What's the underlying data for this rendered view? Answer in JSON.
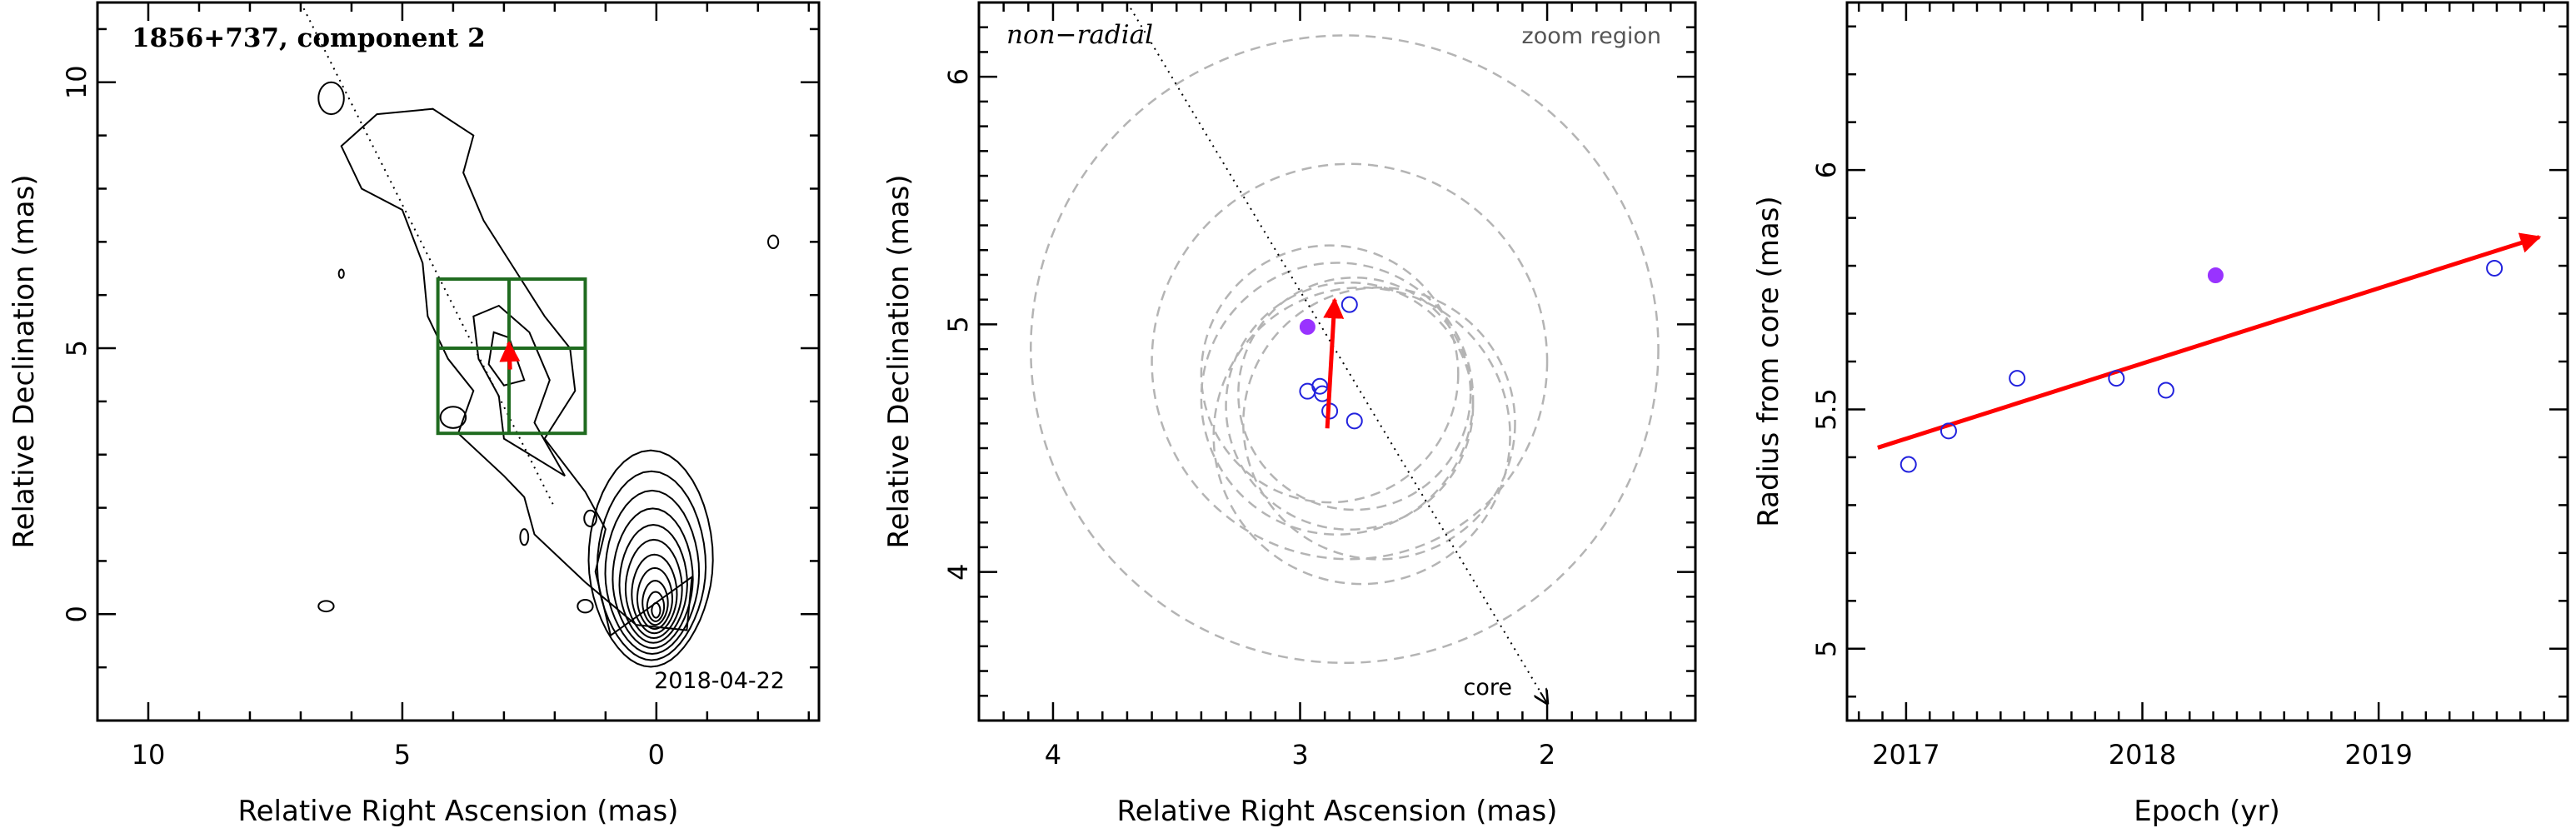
{
  "colors": {
    "vector": "#ff0000",
    "box": "#1f6b1f",
    "measured": "#2222dd",
    "highlight": "#9933ff",
    "circle": "#b4b4b4",
    "contour": "#000000"
  },
  "chart_data": [
    {
      "type": "contour",
      "panel": "left",
      "title": "1856+737, component 2",
      "date_label": "2018-04-22",
      "xlabel": "Relative Right Ascension (mas)",
      "ylabel": "Relative Declination (mas)",
      "xlim": [
        11,
        -3.2
      ],
      "ylim": [
        -2,
        11.5
      ],
      "xticks": [
        10,
        5,
        0
      ],
      "yticks": [
        0,
        5,
        10
      ],
      "zoom_box": {
        "x_range": [
          4.3,
          1.4
        ],
        "y_range": [
          3.4,
          6.3
        ],
        "crosshair": [
          2.9,
          5.0
        ]
      },
      "trajectory_line": {
        "from": [
          7.0,
          11.5
        ],
        "to": [
          2.0,
          2.0
        ]
      },
      "vector_arrow": {
        "from": [
          2.88,
          4.6
        ],
        "to": [
          2.9,
          5.1
        ]
      },
      "core_position": [
        0,
        0
      ]
    },
    {
      "type": "scatter",
      "panel": "middle",
      "annotation_left": "non−radial",
      "annotation_right": "zoom region",
      "core_label": "core",
      "xlabel": "Relative Right Ascension (mas)",
      "ylabel": "Relative Declination (mas)",
      "xlim": [
        4.3,
        1.4
      ],
      "ylim": [
        3.4,
        6.3
      ],
      "xticks": [
        4,
        3,
        2
      ],
      "yticks": [
        4,
        5,
        6
      ],
      "points": [
        {
          "x": 2.97,
          "y": 4.73,
          "kind": "measured"
        },
        {
          "x": 2.92,
          "y": 4.75,
          "kind": "measured"
        },
        {
          "x": 2.91,
          "y": 4.72,
          "kind": "measured"
        },
        {
          "x": 2.88,
          "y": 4.65,
          "kind": "measured"
        },
        {
          "x": 2.78,
          "y": 4.61,
          "kind": "measured"
        },
        {
          "x": 2.8,
          "y": 5.08,
          "kind": "measured"
        },
        {
          "x": 2.97,
          "y": 4.99,
          "kind": "highlight"
        }
      ],
      "error_circles": [
        {
          "cx": 2.82,
          "cy": 4.9,
          "r": 1.27
        },
        {
          "cx": 2.8,
          "cy": 4.85,
          "r": 0.8
        },
        {
          "cx": 2.75,
          "cy": 4.55,
          "r": 0.6
        },
        {
          "cx": 2.85,
          "cy": 4.7,
          "r": 0.55
        },
        {
          "cx": 2.8,
          "cy": 4.67,
          "r": 0.5
        },
        {
          "cx": 2.68,
          "cy": 4.6,
          "r": 0.55
        },
        {
          "cx": 2.88,
          "cy": 4.8,
          "r": 0.52
        },
        {
          "cx": 2.78,
          "cy": 4.72,
          "r": 0.47
        }
      ],
      "trajectory_line": {
        "from": [
          3.7,
          6.3
        ],
        "to": [
          2.0,
          3.47
        ]
      },
      "vector_arrow": {
        "from": [
          2.89,
          4.58
        ],
        "to": [
          2.86,
          5.1
        ]
      }
    },
    {
      "type": "scatter",
      "panel": "right",
      "xlabel": "Epoch (yr)",
      "ylabel": "Radius from core (mas)",
      "xlim": [
        2016.75,
        2019.8
      ],
      "ylim": [
        4.85,
        6.35
      ],
      "xticks": [
        2017,
        2018,
        2019
      ],
      "yticks": [
        5,
        5.5,
        6
      ],
      "ytick_labels": [
        "5",
        "5.5",
        "6"
      ],
      "points": [
        {
          "x": 2017.01,
          "y": 5.385,
          "kind": "measured"
        },
        {
          "x": 2017.18,
          "y": 5.455,
          "kind": "measured"
        },
        {
          "x": 2017.47,
          "y": 5.565,
          "kind": "measured"
        },
        {
          "x": 2017.89,
          "y": 5.565,
          "kind": "measured"
        },
        {
          "x": 2018.1,
          "y": 5.54,
          "kind": "measured"
        },
        {
          "x": 2019.49,
          "y": 5.795,
          "kind": "measured"
        },
        {
          "x": 2018.31,
          "y": 5.78,
          "kind": "highlight"
        }
      ],
      "fit_arrow": {
        "from": [
          2016.88,
          5.42
        ],
        "to": [
          2019.68,
          5.86
        ]
      }
    }
  ]
}
